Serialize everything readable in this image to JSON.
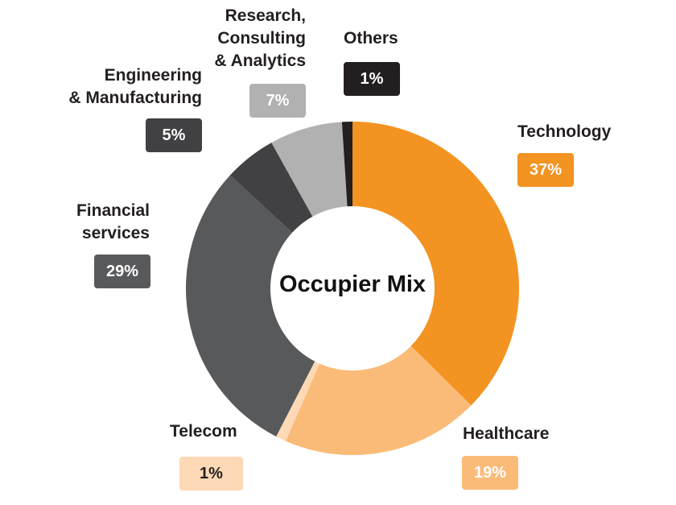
{
  "chart_data": {
    "type": "pie",
    "donut": true,
    "title": "Occupier Mix",
    "slices": [
      {
        "label": "Technology",
        "value": 37,
        "display": "37%",
        "color": "#F39321",
        "text_color": "#ffffff"
      },
      {
        "label": "Healthcare",
        "value": 19,
        "display": "19%",
        "color": "#FBBB78",
        "text_color": "#ffffff"
      },
      {
        "label": "Telecom",
        "value": 1,
        "display": "1%",
        "color": "#FDD9B5",
        "text_color": "#231f20"
      },
      {
        "label": "Financial\nservices",
        "value": 29,
        "display": "29%",
        "color": "#58595B",
        "text_color": "#ffffff"
      },
      {
        "label": "Engineering\n& Manufacturing",
        "value": 5,
        "display": "5%",
        "color": "#414042",
        "text_color": "#ffffff"
      },
      {
        "label": "Research,\nConsulting\n& Analytics",
        "value": 7,
        "display": "7%",
        "color": "#B1B1B1",
        "text_color": "#ffffff"
      },
      {
        "label": "Others",
        "value": 1,
        "display": "1%",
        "color": "#231F20",
        "text_color": "#ffffff"
      }
    ]
  }
}
